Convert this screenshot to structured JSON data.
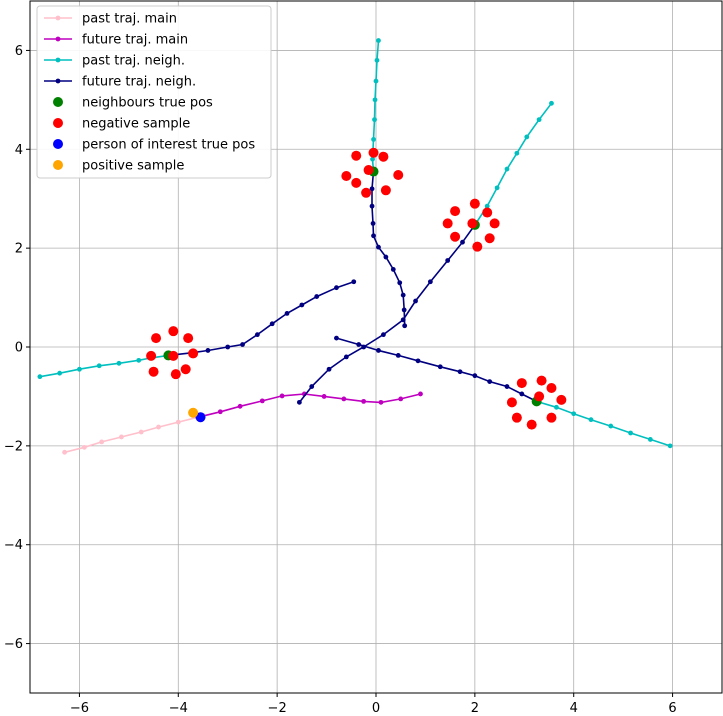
{
  "chart_data": {
    "type": "scatter",
    "title": "",
    "xlabel": "",
    "ylabel": "",
    "xlim": [
      -7,
      7
    ],
    "ylim": [
      -7,
      7
    ],
    "grid": true,
    "legend_position": "top-left",
    "xticks": [
      -6,
      -4,
      -2,
      0,
      2,
      4,
      6
    ],
    "yticks": [
      -6,
      -4,
      -2,
      0,
      2,
      4,
      6
    ],
    "xtick_labels": [
      "−6",
      "−4",
      "−2",
      "0",
      "2",
      "4",
      "6"
    ],
    "ytick_labels": [
      "−6",
      "−4",
      "−2",
      "0",
      "2",
      "4",
      "6"
    ],
    "legend": [
      {
        "label": "past traj. main",
        "color": "#ffc0cb",
        "kind": "line"
      },
      {
        "label": "future traj. main",
        "color": "#bf00bf",
        "kind": "line"
      },
      {
        "label": "past traj. neigh.",
        "color": "#00bfbf",
        "kind": "line"
      },
      {
        "label": "future traj. neigh.",
        "color": "#000080",
        "kind": "line"
      },
      {
        "label": "neighbours true pos",
        "color": "#008000",
        "kind": "dot"
      },
      {
        "label": "negative sample",
        "color": "#ff0000",
        "kind": "dot"
      },
      {
        "label": "person of interest true pos",
        "color": "#0000ff",
        "kind": "dot"
      },
      {
        "label": "positive sample",
        "color": "#ffa500",
        "kind": "dot"
      }
    ],
    "series": [
      {
        "name": "past traj. main",
        "color": "#ffc0cb",
        "kind": "line",
        "points": [
          [
            -6.3,
            -2.13
          ],
          [
            -5.9,
            -2.03
          ],
          [
            -5.55,
            -1.92
          ],
          [
            -5.15,
            -1.82
          ],
          [
            -4.75,
            -1.72
          ],
          [
            -4.4,
            -1.62
          ],
          [
            -4.0,
            -1.52
          ],
          [
            -3.6,
            -1.42
          ]
        ]
      },
      {
        "name": "future traj. main",
        "color": "#bf00bf",
        "kind": "line",
        "points": [
          [
            -3.6,
            -1.42
          ],
          [
            -3.15,
            -1.31
          ],
          [
            -2.75,
            -1.2
          ],
          [
            -2.3,
            -1.09
          ],
          [
            -1.9,
            -0.99
          ],
          [
            -1.45,
            -0.95
          ],
          [
            -1.05,
            -1.0
          ],
          [
            -0.65,
            -1.05
          ],
          [
            -0.25,
            -1.1
          ],
          [
            0.1,
            -1.12
          ],
          [
            0.5,
            -1.05
          ],
          [
            0.9,
            -0.95
          ]
        ]
      },
      {
        "name": "past traj. neigh.",
        "color": "#00bfbf",
        "kind": "line",
        "points": [
          [
            -6.8,
            -0.6
          ],
          [
            -6.4,
            -0.53
          ],
          [
            -6.0,
            -0.45
          ],
          [
            -5.6,
            -0.38
          ],
          [
            -5.2,
            -0.33
          ],
          [
            -4.8,
            -0.27
          ],
          [
            -4.55,
            -0.22
          ],
          [
            -4.2,
            -0.17
          ]
        ]
      },
      {
        "name": "past traj. neigh.",
        "color": "#00bfbf",
        "kind": "line",
        "points": [
          [
            0.05,
            6.2
          ],
          [
            0.02,
            5.8
          ],
          [
            0.0,
            5.38
          ],
          [
            -0.02,
            5.0
          ],
          [
            -0.03,
            4.6
          ],
          [
            -0.05,
            4.2
          ],
          [
            -0.07,
            3.8
          ],
          [
            -0.05,
            3.55
          ]
        ]
      },
      {
        "name": "past traj. neigh.",
        "color": "#00bfbf",
        "kind": "line",
        "points": [
          [
            3.55,
            4.93
          ],
          [
            3.3,
            4.6
          ],
          [
            3.05,
            4.25
          ],
          [
            2.85,
            3.92
          ],
          [
            2.65,
            3.6
          ],
          [
            2.45,
            3.22
          ],
          [
            2.25,
            2.85
          ],
          [
            2.0,
            2.47
          ]
        ]
      },
      {
        "name": "past traj. neigh.",
        "color": "#00bfbf",
        "kind": "line",
        "points": [
          [
            5.95,
            -2.0
          ],
          [
            5.55,
            -1.87
          ],
          [
            5.15,
            -1.74
          ],
          [
            4.75,
            -1.6
          ],
          [
            4.35,
            -1.47
          ],
          [
            4.0,
            -1.35
          ],
          [
            3.65,
            -1.22
          ],
          [
            3.25,
            -1.1
          ]
        ]
      },
      {
        "name": "future traj. neigh.",
        "color": "#000080",
        "kind": "line",
        "points": [
          [
            -4.2,
            -0.17
          ],
          [
            -3.75,
            -0.12
          ],
          [
            -3.4,
            -0.07
          ],
          [
            -3.0,
            0.0
          ],
          [
            -2.7,
            0.05
          ],
          [
            -2.4,
            0.25
          ],
          [
            -2.1,
            0.47
          ],
          [
            -1.8,
            0.68
          ],
          [
            -1.5,
            0.85
          ],
          [
            -1.2,
            1.02
          ],
          [
            -0.8,
            1.2
          ],
          [
            -0.45,
            1.32
          ]
        ]
      },
      {
        "name": "future traj. neigh.",
        "color": "#000080",
        "kind": "line",
        "points": [
          [
            -0.05,
            3.55
          ],
          [
            -0.08,
            3.2
          ],
          [
            -0.08,
            2.85
          ],
          [
            -0.06,
            2.5
          ],
          [
            -0.05,
            2.25
          ],
          [
            0.05,
            2.02
          ],
          [
            0.2,
            1.82
          ],
          [
            0.35,
            1.57
          ],
          [
            0.48,
            1.3
          ],
          [
            0.55,
            1.05
          ],
          [
            0.57,
            0.75
          ],
          [
            0.58,
            0.43
          ]
        ]
      },
      {
        "name": "future traj. neigh.",
        "color": "#000080",
        "kind": "line",
        "points": [
          [
            2.0,
            2.47
          ],
          [
            1.75,
            2.12
          ],
          [
            1.45,
            1.75
          ],
          [
            1.1,
            1.32
          ],
          [
            0.8,
            0.93
          ],
          [
            0.55,
            0.55
          ],
          [
            0.15,
            0.25
          ],
          [
            -0.25,
            0.0
          ],
          [
            -0.6,
            -0.2
          ],
          [
            -0.95,
            -0.45
          ],
          [
            -1.3,
            -0.8
          ],
          [
            -1.55,
            -1.12
          ]
        ]
      },
      {
        "name": "future traj. neigh.",
        "color": "#000080",
        "kind": "line",
        "points": [
          [
            3.25,
            -1.1
          ],
          [
            2.95,
            -0.95
          ],
          [
            2.65,
            -0.8
          ],
          [
            2.3,
            -0.7
          ],
          [
            2.0,
            -0.58
          ],
          [
            1.7,
            -0.5
          ],
          [
            1.3,
            -0.4
          ],
          [
            0.85,
            -0.28
          ],
          [
            0.45,
            -0.17
          ],
          [
            0.05,
            -0.07
          ],
          [
            -0.35,
            0.05
          ],
          [
            -0.8,
            0.18
          ]
        ]
      }
    ],
    "neighbours_true_pos": [
      [
        -4.2,
        -0.17
      ],
      [
        -0.05,
        3.55
      ],
      [
        2.0,
        2.47
      ],
      [
        3.25,
        -1.1
      ]
    ],
    "negative_samples": [
      [
        -4.1,
        0.32
      ],
      [
        -3.8,
        0.18
      ],
      [
        -3.7,
        -0.13
      ],
      [
        -3.85,
        -0.45
      ],
      [
        -4.05,
        -0.55
      ],
      [
        -4.5,
        -0.5
      ],
      [
        -4.55,
        -0.18
      ],
      [
        -4.45,
        0.18
      ],
      [
        -4.1,
        -0.18
      ],
      [
        -0.05,
        3.93
      ],
      [
        0.15,
        3.85
      ],
      [
        0.45,
        3.48
      ],
      [
        0.2,
        3.17
      ],
      [
        -0.2,
        3.12
      ],
      [
        -0.4,
        3.32
      ],
      [
        -0.6,
        3.46
      ],
      [
        -0.4,
        3.87
      ],
      [
        -0.15,
        3.58
      ],
      [
        2.0,
        2.9
      ],
      [
        2.25,
        2.72
      ],
      [
        2.4,
        2.5
      ],
      [
        2.3,
        2.2
      ],
      [
        2.05,
        2.03
      ],
      [
        1.6,
        2.23
      ],
      [
        1.45,
        2.5
      ],
      [
        1.6,
        2.75
      ],
      [
        1.95,
        2.5
      ],
      [
        3.35,
        -0.68
      ],
      [
        3.55,
        -0.83
      ],
      [
        3.75,
        -1.07
      ],
      [
        3.55,
        -1.43
      ],
      [
        3.15,
        -1.57
      ],
      [
        2.85,
        -1.43
      ],
      [
        2.75,
        -1.12
      ],
      [
        2.95,
        -0.73
      ],
      [
        3.3,
        -1.0
      ]
    ],
    "person_of_interest_true_pos": [
      [
        -3.55,
        -1.42
      ]
    ],
    "positive_sample": [
      [
        -3.7,
        -1.33
      ]
    ]
  }
}
